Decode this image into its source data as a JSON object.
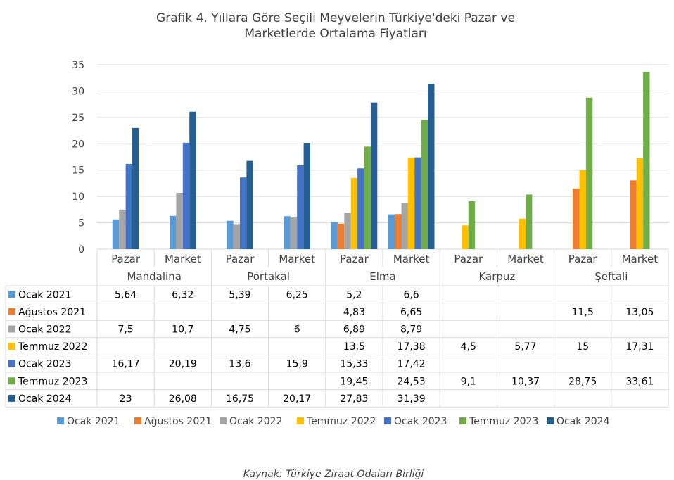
{
  "chart_data": {
    "type": "bar",
    "title_line1": "Grafik 4. Yıllara Göre Seçili Meyvelerin Türkiye'deki Pazar ve",
    "title_line2": "Marketlerde Ortalama Fiyatları",
    "groups": [
      "Mandalina",
      "Portakal",
      "Elma",
      "Karpuz",
      "Şeftali"
    ],
    "subcategories": [
      "Pazar",
      "Market"
    ],
    "categories": [
      "Mandalina Pazar",
      "Mandalina Market",
      "Portakal Pazar",
      "Portakal Market",
      "Elma Pazar",
      "Elma Market",
      "Karpuz Pazar",
      "Karpuz Market",
      "Şeftali Pazar",
      "Şeftali Market"
    ],
    "ylim": [
      0,
      35
    ],
    "yticks": [
      "0",
      "5",
      "10",
      "15",
      "20",
      "25",
      "30",
      "35"
    ],
    "grid": true,
    "legend_position": "bottom",
    "series": [
      {
        "name": "Ocak 2021",
        "color": "#5b9bd5",
        "values": [
          5.64,
          6.32,
          5.39,
          6.25,
          5.2,
          6.6,
          null,
          null,
          null,
          null
        ],
        "labels": [
          "5,64",
          "6,32",
          "5,39",
          "6,25",
          "5,2",
          "6,6",
          "",
          "",
          "",
          ""
        ]
      },
      {
        "name": "Ağustos 2021",
        "color": "#ed7d31",
        "values": [
          null,
          null,
          null,
          null,
          4.83,
          6.65,
          null,
          null,
          11.5,
          13.05
        ],
        "labels": [
          "",
          "",
          "",
          "",
          "4,83",
          "6,65",
          "",
          "",
          "11,5",
          "13,05"
        ]
      },
      {
        "name": "Ocak 2022",
        "color": "#a5a5a5",
        "values": [
          7.5,
          10.7,
          4.75,
          6,
          6.89,
          8.79,
          null,
          null,
          null,
          null
        ],
        "labels": [
          "7,5",
          "10,7",
          "4,75",
          "6",
          "6,89",
          "8,79",
          "",
          "",
          "",
          ""
        ]
      },
      {
        "name": "Temmuz 2022",
        "color": "#ffc000",
        "values": [
          null,
          null,
          null,
          null,
          13.5,
          17.38,
          4.5,
          5.77,
          15,
          17.31
        ],
        "labels": [
          "",
          "",
          "",
          "",
          "13,5",
          "17,38",
          "4,5",
          "5,77",
          "15",
          "17,31"
        ]
      },
      {
        "name": "Ocak 2023",
        "color": "#4472c4",
        "values": [
          16.17,
          20.19,
          13.6,
          15.9,
          15.33,
          17.42,
          null,
          null,
          null,
          null
        ],
        "labels": [
          "16,17",
          "20,19",
          "13,6",
          "15,9",
          "15,33",
          "17,42",
          "",
          "",
          "",
          ""
        ]
      },
      {
        "name": "Temmuz 2023",
        "color": "#70ad47",
        "values": [
          null,
          null,
          null,
          null,
          19.45,
          24.53,
          9.1,
          10.37,
          28.75,
          33.61
        ],
        "labels": [
          "",
          "",
          "",
          "",
          "19,45",
          "24,53",
          "9,1",
          "10,37",
          "28,75",
          "33,61"
        ]
      },
      {
        "name": "Ocak 2024",
        "color": "#255e91",
        "values": [
          23,
          26.08,
          16.75,
          20.17,
          27.83,
          31.39,
          null,
          null,
          null,
          null
        ],
        "labels": [
          "23",
          "26,08",
          "16,75",
          "20,17",
          "27,83",
          "31,39",
          "",
          "",
          "",
          ""
        ]
      }
    ]
  },
  "source": "Kaynak: Türkiye Ziraat Odaları Birliği"
}
